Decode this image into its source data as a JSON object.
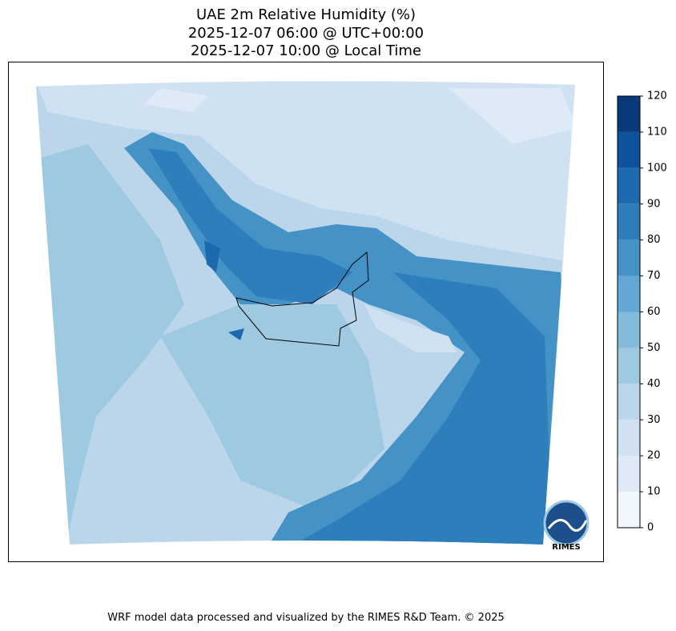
{
  "title": [
    "UAE 2m Relative Humidity (%)",
    "2025-12-07 06:00 @ UTC+00:00",
    "2025-12-07 10:00 @ Local Time"
  ],
  "colorbar": {
    "ticks": [
      0,
      10,
      20,
      30,
      40,
      50,
      60,
      70,
      80,
      90,
      100,
      110,
      120
    ],
    "colors": [
      "#eff6fc",
      "#deebf7",
      "#d0e2f2",
      "#bbd6eb",
      "#9ecae1",
      "#82bbdb",
      "#62a8d3",
      "#4492c6",
      "#2f7ebc",
      "#1c69ae",
      "#0c529c",
      "#08397b"
    ]
  },
  "logo": "RIMES",
  "footer": "WRF model data processed and visualized by the RIMES R&D Team. © 2025"
}
